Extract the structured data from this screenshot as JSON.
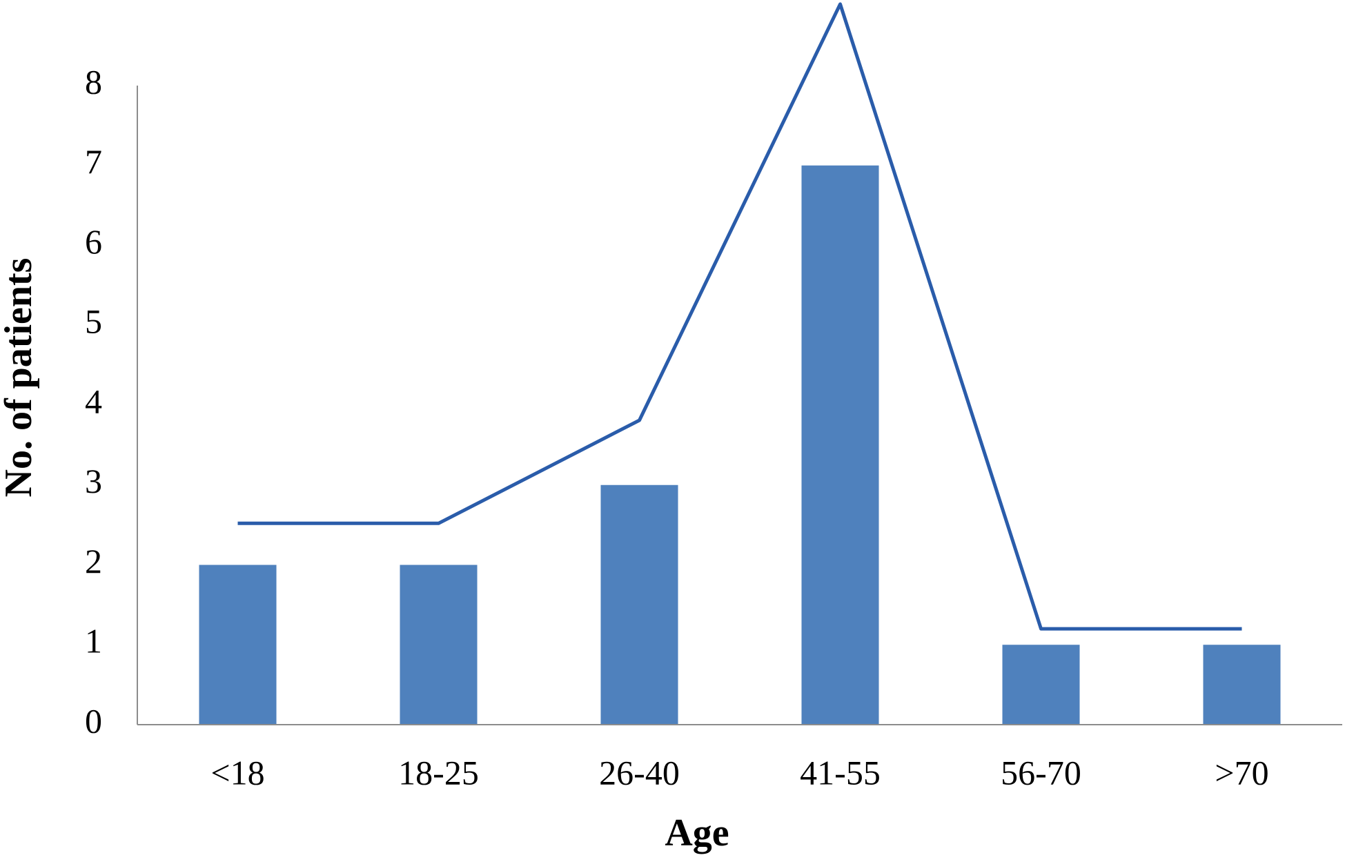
{
  "chart_data": {
    "type": "bar",
    "x_label": "Age",
    "y_label": "No. of patients",
    "categories": [
      "<18",
      "18-25",
      "26-40",
      "41-55",
      "56-70",
      ">70"
    ],
    "series": [
      {
        "type": "bar",
        "color": "#4f81bd",
        "values": [
          2,
          2,
          3,
          7,
          1,
          1
        ]
      },
      {
        "type": "line",
        "color": "#2a5caa",
        "values": [
          2.52,
          2.52,
          3.81,
          9.02,
          1.2,
          1.2
        ]
      }
    ],
    "ylim": [
      0,
      8
    ],
    "yticks": [
      0,
      1,
      2,
      3,
      4,
      5,
      6,
      7,
      8
    ],
    "grid": false
  }
}
